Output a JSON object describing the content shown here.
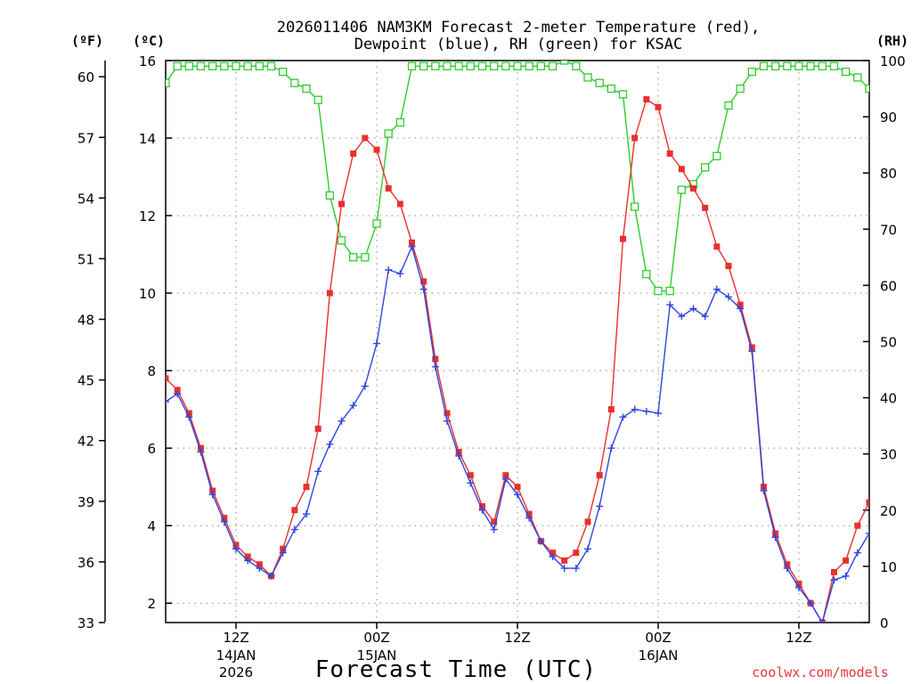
{
  "chart_data": {
    "type": "line",
    "title_line1": "2026011406 NAM3KM Forecast 2-meter Temperature (red),",
    "title_line2": "Dewpoint (blue), RH (green) for KSAC",
    "xlabel": "Forecast Time (UTC)",
    "credit": "coolwx.com/models",
    "unit_f": "(ºF)",
    "unit_c": "(ºC)",
    "unit_rh": "(RH)",
    "x_start_hour": 6,
    "x_end_hour": 66,
    "x_ticks": [
      {
        "hour": 12,
        "label": "12Z",
        "sub1": "14JAN",
        "sub2": "2026"
      },
      {
        "hour": 24,
        "label": "00Z",
        "sub1": "15JAN",
        "sub2": ""
      },
      {
        "hour": 36,
        "label": "12Z",
        "sub1": "",
        "sub2": ""
      },
      {
        "hour": 48,
        "label": "00Z",
        "sub1": "16JAN",
        "sub2": ""
      },
      {
        "hour": 60,
        "label": "12Z",
        "sub1": "",
        "sub2": ""
      }
    ],
    "ylim_c": [
      1.5,
      16
    ],
    "yticks_c": [
      "2",
      "4",
      "6",
      "8",
      "10",
      "12",
      "14",
      "16"
    ],
    "ylim_f": [
      33,
      60.8
    ],
    "yticks_f": [
      "33",
      "36",
      "39",
      "42",
      "45",
      "48",
      "51",
      "54",
      "57",
      "60"
    ],
    "ylim_rh": [
      0,
      100
    ],
    "yticks_rh": [
      "0",
      "10",
      "20",
      "30",
      "40",
      "50",
      "60",
      "70",
      "80",
      "90",
      "100"
    ],
    "x_hours": [
      6,
      7,
      8,
      9,
      10,
      11,
      12,
      13,
      14,
      15,
      16,
      17,
      18,
      19,
      20,
      21,
      22,
      23,
      24,
      25,
      26,
      27,
      28,
      29,
      30,
      31,
      32,
      33,
      34,
      35,
      36,
      37,
      38,
      39,
      40,
      41,
      42,
      43,
      44,
      45,
      46,
      47,
      48,
      49,
      50,
      51,
      52,
      53,
      54,
      55,
      56,
      57,
      58,
      59,
      60,
      61,
      62,
      63,
      64,
      65,
      66
    ],
    "series": [
      {
        "name": "Temperature",
        "unit": "C",
        "color": "#e8302c",
        "marker": "filled-square",
        "values": [
          7.8,
          7.5,
          6.9,
          6.0,
          4.9,
          4.2,
          3.5,
          3.2,
          3.0,
          2.7,
          3.4,
          4.4,
          5.0,
          6.5,
          10.0,
          12.3,
          13.6,
          14.0,
          13.7,
          12.7,
          12.3,
          11.3,
          10.3,
          8.3,
          6.9,
          5.9,
          5.3,
          4.5,
          4.1,
          5.3,
          5.0,
          4.3,
          3.6,
          3.3,
          3.1,
          3.3,
          4.1,
          5.3,
          7.0,
          11.4,
          14.0,
          15.0,
          14.8,
          13.6,
          13.2,
          12.7,
          12.2,
          11.2,
          10.7,
          9.7,
          8.6,
          5.0,
          3.8,
          3.0,
          2.5,
          2.0,
          1.5,
          2.8,
          3.1,
          4.0,
          4.6
        ],
        "last_value_note": "final point clipped at right edge"
      },
      {
        "name": "Dewpoint",
        "unit": "C",
        "color": "#2e46e0",
        "marker": "plus",
        "values": [
          7.2,
          7.4,
          6.8,
          5.9,
          4.8,
          4.1,
          3.4,
          3.1,
          2.9,
          2.7,
          3.3,
          3.9,
          4.3,
          5.4,
          6.1,
          6.7,
          7.1,
          7.6,
          8.7,
          10.6,
          10.5,
          11.2,
          10.1,
          8.1,
          6.7,
          5.8,
          5.1,
          4.4,
          3.9,
          5.2,
          4.8,
          4.2,
          3.6,
          3.2,
          2.9,
          2.9,
          3.4,
          4.5,
          6.0,
          6.8,
          7.0,
          6.95,
          6.9,
          9.7,
          9.4,
          9.6,
          9.4,
          10.1,
          9.9,
          9.6,
          8.5,
          4.9,
          3.7,
          2.9,
          2.4,
          2.0,
          1.5,
          2.6,
          2.7,
          3.3,
          3.8
        ]
      },
      {
        "name": "RH",
        "unit": "%",
        "color": "#2ecc2e",
        "marker": "open-square",
        "values": [
          96,
          99,
          99,
          99,
          99,
          99,
          99,
          99,
          99,
          99,
          98,
          96,
          95,
          93,
          76,
          68,
          65,
          65,
          71,
          87,
          89,
          99,
          99,
          99,
          99,
          99,
          99,
          99,
          99,
          99,
          99,
          99,
          99,
          99,
          100,
          99,
          97,
          96,
          95,
          94,
          74,
          62,
          59,
          59,
          77,
          78,
          81,
          83,
          92,
          95,
          98,
          99,
          99,
          99,
          99,
          99,
          99,
          99,
          98,
          97,
          95
        ]
      }
    ]
  }
}
